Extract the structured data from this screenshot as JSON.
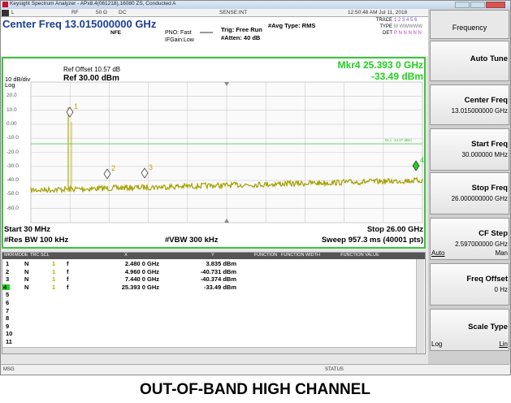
{
  "window": {
    "title": "Keysight Spectrum Analyzer - APx8.4(061218),16080 ZS, Conducted A"
  },
  "status_bar": {
    "items": [
      "L",
      "RF",
      "50 Ω",
      "DC",
      "SENSE:INT"
    ],
    "datetime": "12:50:48 AM Jul 11, 2018"
  },
  "header": {
    "center_freq": "Center Freq 13.015000000 GHz",
    "nfe": "NFE",
    "pno": "PNO: Fast",
    "ifgain": "IFGain:Low",
    "trig": "Trig: Free Run",
    "atten": "#Atten: 40 dB",
    "avg": "#Avg Type: RMS",
    "trace_label": "TRACE",
    "trace": "1 2 3 4 5 6",
    "type_label": "TYPE",
    "type": "M WWWWW",
    "det_label": "DET",
    "det": "P N N N N N"
  },
  "graph": {
    "scale": "10 dB/div",
    "log": "Log",
    "ref_offset": "Ref Offset 10.57 dB",
    "ref": "Ref 30.00 dBm",
    "marker_readout": "Mkr4 25.393 0 GHz",
    "marker_value": "-33.49 dBm",
    "y_labels": [
      "20.0",
      "10.0",
      "0.00",
      "-10.0",
      "-20.0",
      "-30.0",
      "-40.0",
      "-50.0",
      "-60.0"
    ],
    "display_line": "DL1 -13.97 dBm",
    "marker_labels": [
      "1",
      "2",
      "3",
      "4"
    ],
    "start": "Start 30 MHz",
    "stop": "Stop 26.00 GHz",
    "rbw": "#Res BW 100 kHz",
    "vbw": "#VBW 300 kHz",
    "sweep": "Sweep 957.3 ms (40001 pts)"
  },
  "marker_table": {
    "columns": [
      "MKR",
      "MODE",
      "TRC",
      "SCL",
      "X",
      "Y",
      "FUNCTION",
      "FUNCTION WIDTH",
      "FUNCTION VALUE"
    ],
    "rows": [
      [
        "1",
        "N",
        "1",
        "f",
        "2.480 0 GHz",
        "3.835 dBm"
      ],
      [
        "2",
        "N",
        "1",
        "f",
        "4.960 0 GHz",
        "-40.731 dBm"
      ],
      [
        "3",
        "N",
        "1",
        "f",
        "7.440 0 GHz",
        "-40.374 dBm"
      ],
      [
        "4",
        "N",
        "1",
        "f",
        "25.393 0 GHz",
        "-33.49 dBm"
      ],
      [
        "5"
      ],
      [
        "6"
      ],
      [
        "7"
      ],
      [
        "8"
      ],
      [
        "9"
      ],
      [
        "10"
      ],
      [
        "11"
      ]
    ]
  },
  "bottom_status": {
    "msg": "MSG",
    "status": "STATUS"
  },
  "softkeys": [
    {
      "label": "Frequency"
    },
    {
      "label": "Auto Tune"
    },
    {
      "label": "Center Freq",
      "value": "13.015000000 GHz"
    },
    {
      "label": "Start Freq",
      "value": "30.000000 MHz"
    },
    {
      "label": "Stop Freq",
      "value": "26.000000000 GHz"
    },
    {
      "label": "CF Step",
      "value": "2.597000000 GHz",
      "options": [
        "Auto",
        "Man"
      ]
    },
    {
      "label": "Freq Offset",
      "value": "0 Hz"
    },
    {
      "label": "Scale Type",
      "options": [
        "Log",
        "Lin"
      ]
    }
  ],
  "caption": "OUT-OF-BAND HIGH CHANNEL"
}
